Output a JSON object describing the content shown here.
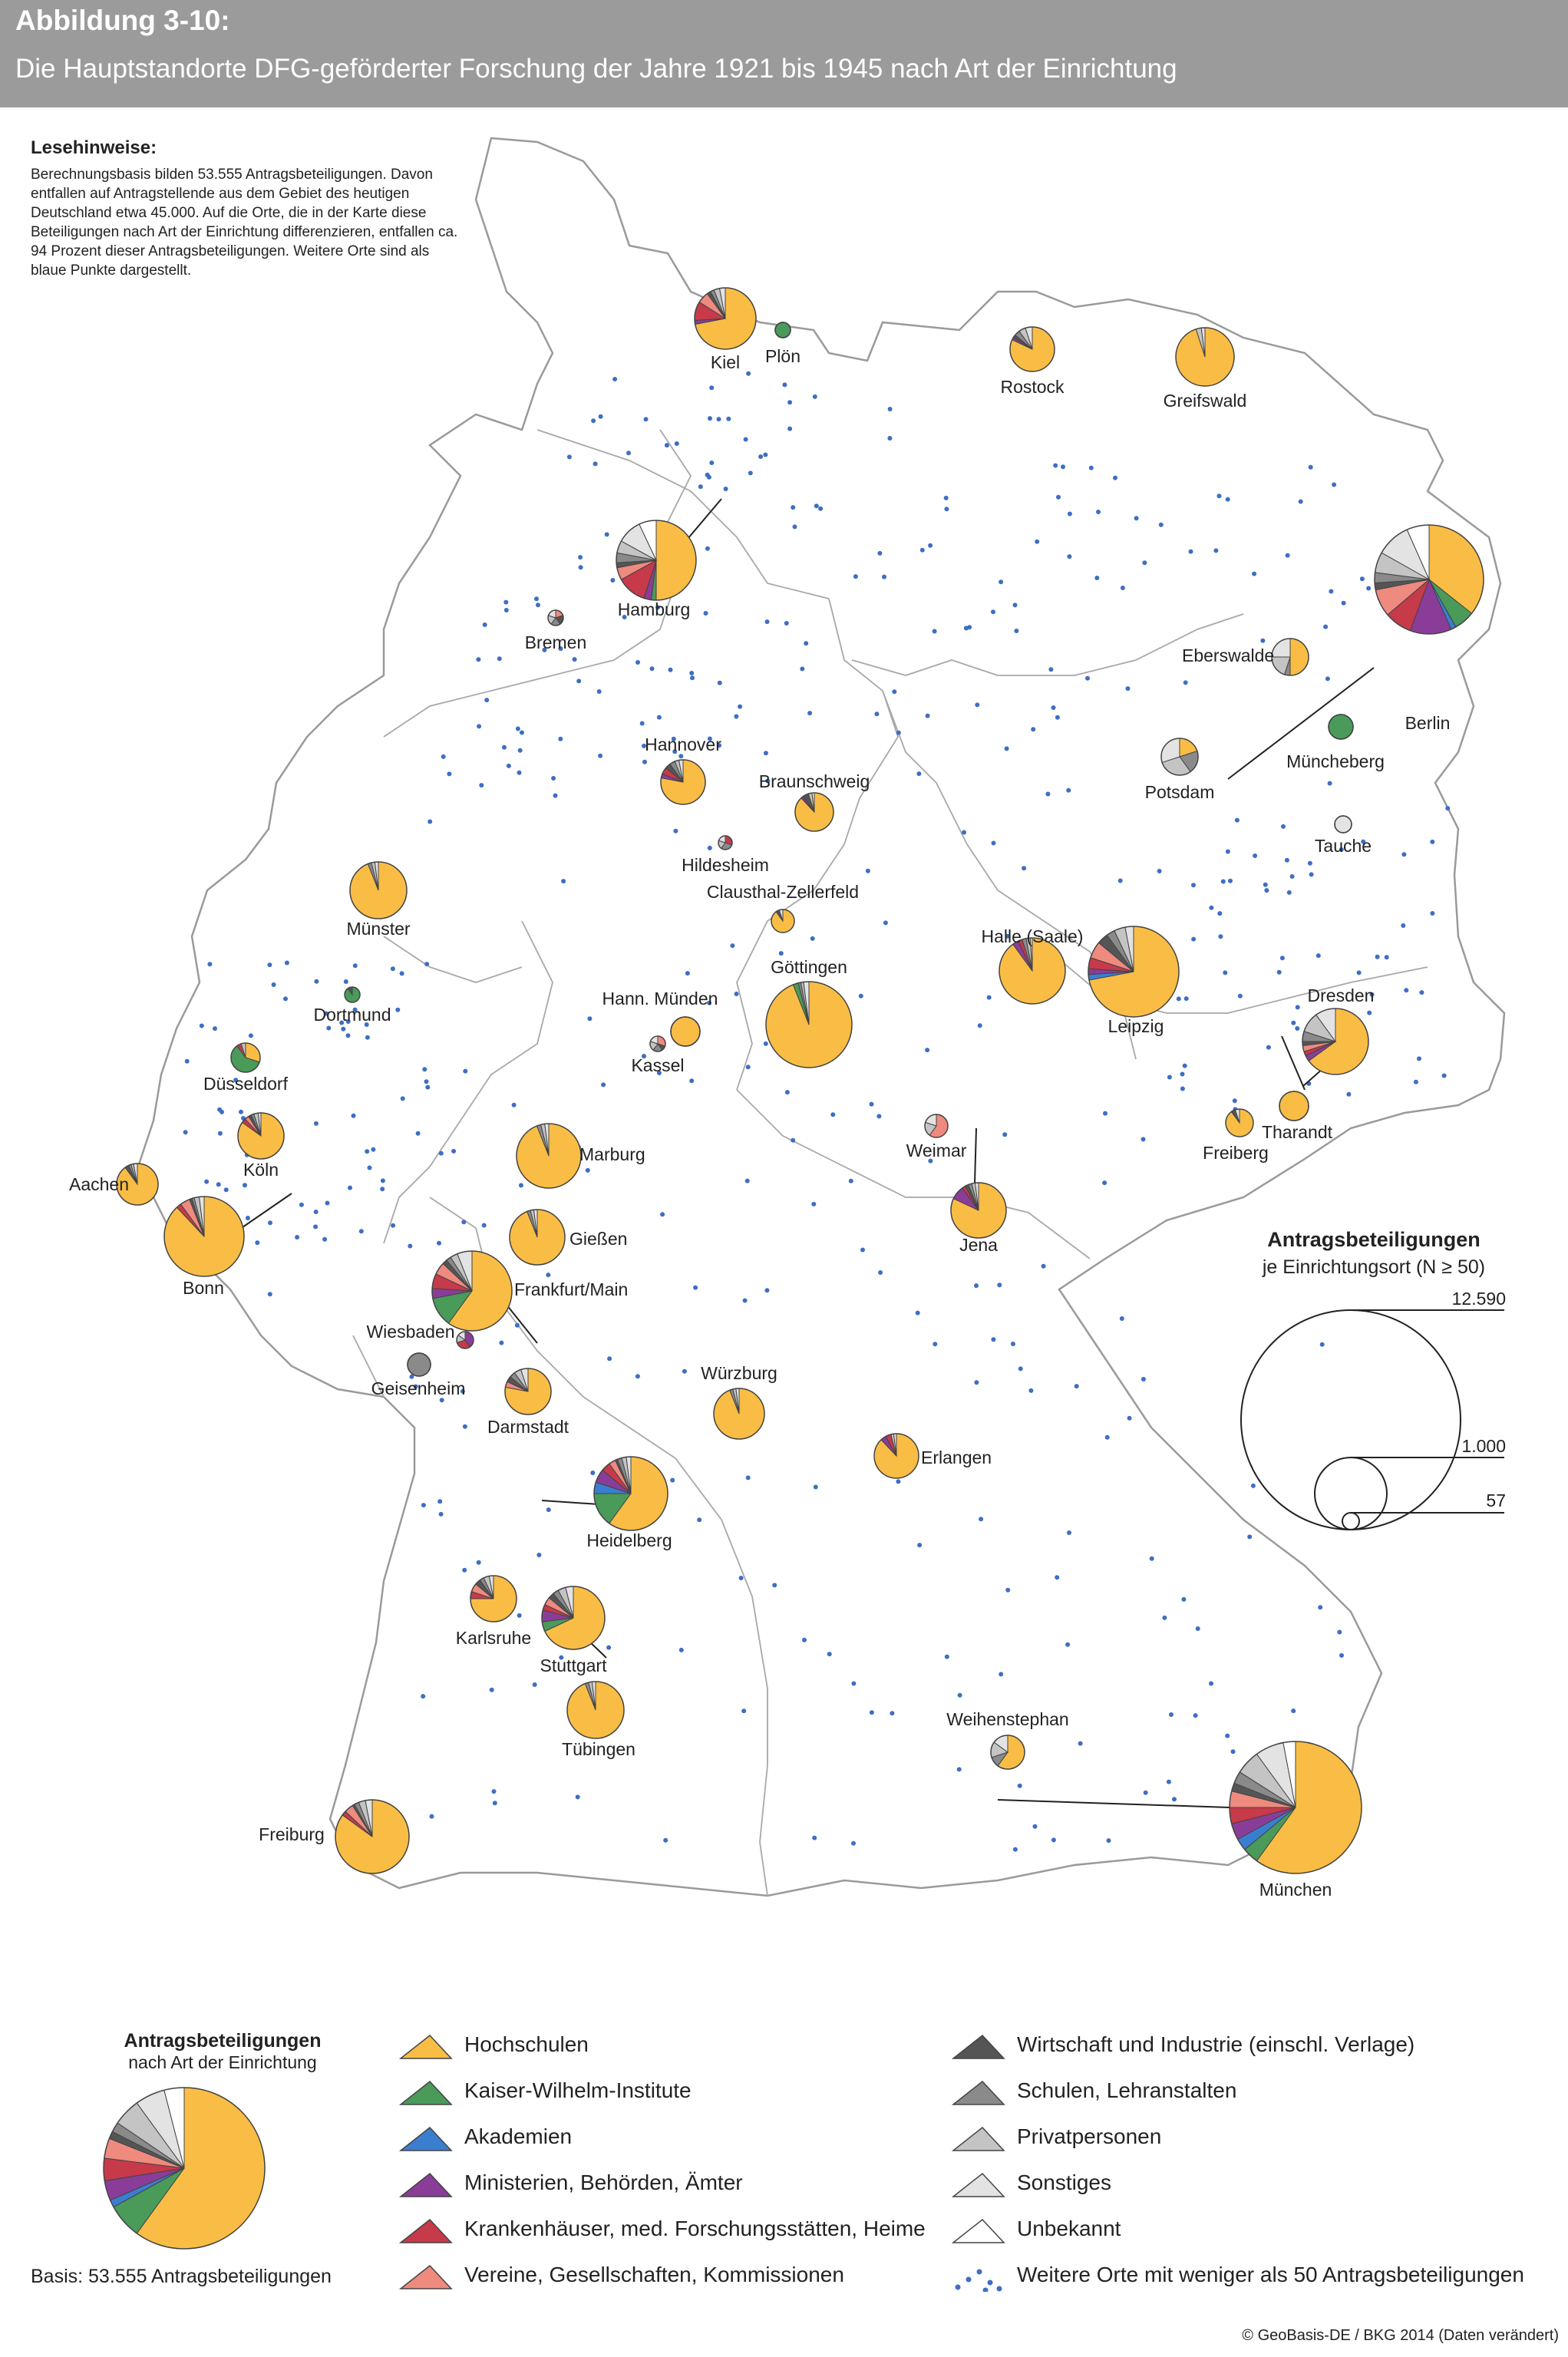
{
  "header": {
    "figure_label": "Abbildung 3-10:",
    "title": "Die Hauptstandorte DFG-geförderter Forschung der Jahre 1921 bis 1945 nach Art der Einrichtung"
  },
  "reading_note": {
    "title": "Lesehinweise:",
    "text": "Berechnungsbasis bilden 53.555 Antragsbeteiligungen. Davon entfallen auf Antragstellende aus dem Gebiet des heutigen Deutschland etwa 45.000. Auf die Orte, die in der Karte diese Beteiligungen nach Art der Einrichtung differenzieren, entfallen ca. 94 Prozent dieser Antragsbeteiligungen. Weitere Orte sind als blaue Punkte dargestellt."
  },
  "colors": {
    "hochschulen": "#f9bd45",
    "kwi": "#4a9a5a",
    "akademien": "#3a7ed0",
    "ministerien": "#8a3d98",
    "krankenhaeuser": "#c63a4a",
    "vereine": "#ef8a7e",
    "wirtschaft": "#555555",
    "schulen": "#8a8a8a",
    "privat": "#c4c4c4",
    "sonstiges": "#e3e3e3",
    "unbekannt": "#ffffff",
    "dot": "#3d6fc2"
  },
  "categories": [
    {
      "key": "hochschulen",
      "label": "Hochschulen"
    },
    {
      "key": "kwi",
      "label": "Kaiser-Wilhelm-Institute"
    },
    {
      "key": "akademien",
      "label": "Akademien"
    },
    {
      "key": "ministerien",
      "label": "Ministerien, Behörden, Ämter"
    },
    {
      "key": "krankenhaeuser",
      "label": "Krankenhäuser, med. Forschungsstätten, Heime"
    },
    {
      "key": "vereine",
      "label": "Vereine, Gesellschaften, Kommissionen"
    },
    {
      "key": "wirtschaft",
      "label": "Wirtschaft und Industrie (einschl. Verlage)"
    },
    {
      "key": "schulen",
      "label": "Schulen, Lehranstalten"
    },
    {
      "key": "privat",
      "label": "Privatpersonen"
    },
    {
      "key": "sonstiges",
      "label": "Sonstiges"
    },
    {
      "key": "unbekannt",
      "label": "Unbekannt"
    }
  ],
  "dots_legend_label": "Weitere Orte mit weniger als 50 Antragsbeteiligungen",
  "size_legend": {
    "title": "Antragsbeteiligungen",
    "subtitle": "je Einrichtungsort (N ≥ 50)",
    "values": [
      "12.590",
      "1.000",
      "57"
    ]
  },
  "overall_legend": {
    "title": "Antragsbeteiligungen",
    "subtitle": "nach Art der Einrichtung",
    "basis": "Basis: 53.555 Antragsbeteiligungen",
    "shares": [
      0.6,
      0.07,
      0.015,
      0.04,
      0.045,
      0.04,
      0.015,
      0.02,
      0.055,
      0.06,
      0.04
    ]
  },
  "copyright": "© GeoBasis-DE / BKG 2014 (Daten verändert)",
  "cities": [
    {
      "name": "Kiel",
      "r": 40,
      "shares": [
        0.72,
        0,
        0,
        0.02,
        0.1,
        0.06,
        0.02,
        0.02,
        0.03,
        0.03,
        0
      ]
    },
    {
      "name": "Plön",
      "r": 10,
      "shares": [
        0,
        1,
        0,
        0,
        0,
        0,
        0,
        0,
        0,
        0,
        0
      ]
    },
    {
      "name": "Rostock",
      "r": 29,
      "shares": [
        0.82,
        0,
        0,
        0.02,
        0,
        0,
        0.02,
        0.04,
        0.05,
        0.05,
        0
      ]
    },
    {
      "name": "Greifswald",
      "r": 38,
      "shares": [
        0.95,
        0,
        0,
        0,
        0,
        0,
        0,
        0,
        0.03,
        0.02,
        0
      ]
    },
    {
      "name": "Hamburg",
      "r": 52,
      "shares": [
        0.5,
        0.02,
        0,
        0.03,
        0.12,
        0.05,
        0.02,
        0.04,
        0.05,
        0.1,
        0.07
      ]
    },
    {
      "name": "Bremen",
      "r": 10,
      "shares": [
        0,
        0,
        0,
        0,
        0,
        0.2,
        0.2,
        0.2,
        0.2,
        0.2,
        0
      ]
    },
    {
      "name": "Berlin",
      "r": 71,
      "shares": [
        0.35,
        0.06,
        0.015,
        0.12,
        0.08,
        0.08,
        0.02,
        0.03,
        0.06,
        0.1,
        0.065
      ]
    },
    {
      "name": "Eberswalde",
      "r": 24,
      "shares": [
        0.5,
        0,
        0,
        0,
        0,
        0,
        0,
        0.05,
        0.2,
        0.25,
        0
      ]
    },
    {
      "name": "Müncheberg",
      "r": 16,
      "shares": [
        0,
        1,
        0,
        0,
        0,
        0,
        0,
        0,
        0,
        0,
        0
      ]
    },
    {
      "name": "Potsdam",
      "r": 24,
      "shares": [
        0.2,
        0,
        0,
        0,
        0,
        0,
        0,
        0.2,
        0.3,
        0.3,
        0
      ]
    },
    {
      "name": "Tauche",
      "r": 11,
      "shares": [
        0,
        0,
        0,
        0,
        0,
        0,
        0,
        0,
        0,
        1,
        0
      ]
    },
    {
      "name": "Hannover",
      "r": 29,
      "shares": [
        0.78,
        0,
        0,
        0.03,
        0.05,
        0,
        0.04,
        0.04,
        0.03,
        0.03,
        0
      ]
    },
    {
      "name": "Braunschweig",
      "r": 25,
      "shares": [
        0.88,
        0,
        0,
        0.02,
        0,
        0,
        0.05,
        0,
        0.03,
        0.02,
        0
      ]
    },
    {
      "name": "Hildesheim",
      "r": 9,
      "shares": [
        0,
        0,
        0,
        0,
        0.3,
        0,
        0,
        0.3,
        0.2,
        0.2,
        0
      ]
    },
    {
      "name": "Clausthal-Zellerfeld",
      "r": 15,
      "shares": [
        0.9,
        0,
        0,
        0,
        0,
        0,
        0.05,
        0,
        0,
        0.05,
        0
      ]
    },
    {
      "name": "Münster",
      "r": 37,
      "shares": [
        0.94,
        0,
        0,
        0,
        0,
        0,
        0,
        0.02,
        0.02,
        0.02,
        0
      ]
    },
    {
      "name": "Göttingen",
      "r": 56,
      "shares": [
        0.94,
        0.02,
        0,
        0,
        0,
        0,
        0,
        0.01,
        0.01,
        0.02,
        0
      ]
    },
    {
      "name": "Halle (Saale)",
      "r": 43,
      "shares": [
        0.9,
        0,
        0,
        0.03,
        0.02,
        0,
        0,
        0.02,
        0.02,
        0.01,
        0
      ]
    },
    {
      "name": "Leipzig",
      "r": 59,
      "shares": [
        0.72,
        0,
        0.02,
        0.02,
        0.04,
        0.06,
        0.04,
        0.03,
        0.04,
        0.03,
        0
      ]
    },
    {
      "name": "Dortmund",
      "r": 10,
      "shares": [
        0,
        0.9,
        0,
        0,
        0,
        0,
        0.1,
        0,
        0,
        0,
        0
      ]
    },
    {
      "name": "Hann. Münden",
      "r": 19,
      "shares": [
        1,
        0,
        0,
        0,
        0,
        0,
        0,
        0,
        0,
        0,
        0
      ]
    },
    {
      "name": "Kassel",
      "r": 10,
      "shares": [
        0,
        0,
        0,
        0,
        0,
        0.3,
        0.1,
        0.2,
        0.2,
        0.2,
        0
      ]
    },
    {
      "name": "Düsseldorf",
      "r": 19,
      "shares": [
        0.3,
        0.6,
        0,
        0,
        0.05,
        0,
        0,
        0,
        0.05,
        0,
        0
      ]
    },
    {
      "name": "Dresden",
      "r": 43,
      "shares": [
        0.65,
        0,
        0,
        0.03,
        0.02,
        0.03,
        0.02,
        0.05,
        0.1,
        0.1,
        0
      ]
    },
    {
      "name": "Köln",
      "r": 30,
      "shares": [
        0.85,
        0,
        0,
        0,
        0.03,
        0.03,
        0.02,
        0.02,
        0.03,
        0.02,
        0
      ]
    },
    {
      "name": "Marburg",
      "r": 42,
      "shares": [
        0.94,
        0,
        0,
        0,
        0,
        0,
        0,
        0.02,
        0.02,
        0.02,
        0
      ]
    },
    {
      "name": "Weimar",
      "r": 15,
      "shares": [
        0,
        0,
        0,
        0,
        0,
        0.6,
        0,
        0,
        0.2,
        0.2,
        0
      ]
    },
    {
      "name": "Freiberg",
      "r": 18,
      "shares": [
        0.9,
        0,
        0,
        0,
        0,
        0,
        0.05,
        0,
        0,
        0.05,
        0
      ]
    },
    {
      "name": "Tharandt",
      "r": 19,
      "shares": [
        1,
        0,
        0,
        0,
        0,
        0,
        0,
        0,
        0,
        0,
        0
      ]
    },
    {
      "name": "Aachen",
      "r": 27,
      "shares": [
        0.9,
        0,
        0,
        0,
        0,
        0,
        0.03,
        0.02,
        0.02,
        0.03,
        0
      ]
    },
    {
      "name": "Bonn",
      "r": 52,
      "shares": [
        0.88,
        0,
        0,
        0,
        0.02,
        0.04,
        0.01,
        0.01,
        0.02,
        0.02,
        0
      ]
    },
    {
      "name": "Jena",
      "r": 36,
      "shares": [
        0.82,
        0,
        0,
        0.08,
        0.02,
        0,
        0.02,
        0.02,
        0.02,
        0.02,
        0
      ]
    },
    {
      "name": "Gießen",
      "r": 36,
      "shares": [
        0.94,
        0,
        0,
        0,
        0,
        0,
        0,
        0.02,
        0.02,
        0.02,
        0
      ]
    },
    {
      "name": "Frankfurt/Main",
      "r": 52,
      "shares": [
        0.6,
        0.12,
        0,
        0.04,
        0.06,
        0.05,
        0.02,
        0.02,
        0.03,
        0.06,
        0
      ]
    },
    {
      "name": "Wiesbaden",
      "r": 11,
      "shares": [
        0,
        0,
        0,
        0.4,
        0.3,
        0,
        0,
        0,
        0.15,
        0.15,
        0
      ]
    },
    {
      "name": "Geisenheim",
      "r": 15,
      "shares": [
        0,
        0,
        0,
        0,
        0,
        0,
        0,
        1,
        0,
        0,
        0
      ]
    },
    {
      "name": "Darmstadt",
      "r": 30,
      "shares": [
        0.78,
        0,
        0,
        0,
        0,
        0.04,
        0.04,
        0.04,
        0.05,
        0.05,
        0
      ]
    },
    {
      "name": "Würzburg",
      "r": 33,
      "shares": [
        0.94,
        0,
        0,
        0,
        0,
        0,
        0,
        0.02,
        0.02,
        0.02,
        0
      ]
    },
    {
      "name": "Erlangen",
      "r": 29,
      "shares": [
        0.88,
        0,
        0,
        0.04,
        0.04,
        0,
        0,
        0,
        0.02,
        0.02,
        0
      ]
    },
    {
      "name": "Heidelberg",
      "r": 48,
      "shares": [
        0.6,
        0.15,
        0.05,
        0.06,
        0.04,
        0.03,
        0.01,
        0.02,
        0.02,
        0.02,
        0
      ]
    },
    {
      "name": "Karlsruhe",
      "r": 30,
      "shares": [
        0.75,
        0,
        0,
        0,
        0.05,
        0.06,
        0.04,
        0.03,
        0.04,
        0.03,
        0
      ]
    },
    {
      "name": "Stuttgart",
      "r": 41,
      "shares": [
        0.68,
        0.05,
        0,
        0.06,
        0.03,
        0.04,
        0.03,
        0.03,
        0.04,
        0.04,
        0
      ]
    },
    {
      "name": "Tübingen",
      "r": 37,
      "shares": [
        0.94,
        0,
        0,
        0,
        0,
        0,
        0,
        0.02,
        0.02,
        0.02,
        0
      ]
    },
    {
      "name": "Weihenstephan",
      "r": 22,
      "shares": [
        0.6,
        0,
        0,
        0,
        0,
        0,
        0,
        0.1,
        0.15,
        0.15,
        0
      ]
    },
    {
      "name": "Freiburg",
      "r": 48,
      "shares": [
        0.85,
        0,
        0,
        0,
        0.02,
        0.04,
        0.01,
        0.02,
        0.03,
        0.03,
        0
      ]
    },
    {
      "name": "München",
      "r": 86,
      "shares": [
        0.6,
        0.04,
        0.03,
        0.04,
        0.04,
        0.04,
        0.02,
        0.03,
        0.06,
        0.07,
        0.03
      ]
    }
  ]
}
